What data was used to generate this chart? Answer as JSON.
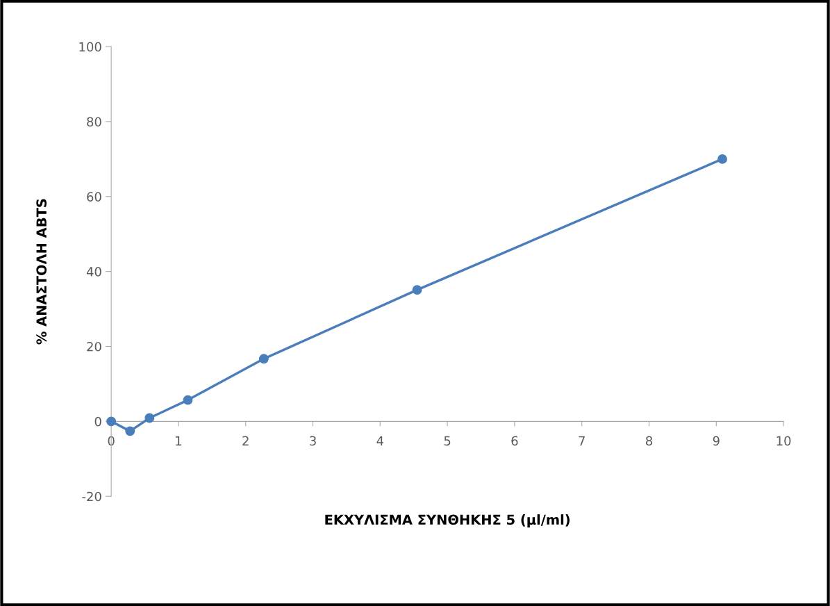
{
  "chart_data": {
    "type": "line",
    "xlabel": "ΕΚΧΥΛΙΣΜΑ ΣΥΝΘΗΚΗΣ 5 (μl/ml)",
    "ylabel": "% ΑΝΑΣΤΟΛΗ ABTS",
    "x": [
      0,
      0.28,
      0.57,
      1.14,
      2.27,
      4.55,
      9.09
    ],
    "series": [
      {
        "color": "#4a7ebb",
        "values": [
          0,
          -2.6,
          0.9,
          5.7,
          16.7,
          35.1,
          70.0
        ]
      }
    ],
    "xlim": [
      0,
      10
    ],
    "xticks": [
      0,
      1,
      2,
      3,
      4,
      5,
      6,
      7,
      8,
      9,
      10
    ],
    "ylim": [
      -20,
      100
    ],
    "yticks": [
      -20,
      0,
      20,
      40,
      60,
      80,
      100
    ],
    "grid": false,
    "legend": false,
    "marker": "circle",
    "line_style": "solid"
  }
}
